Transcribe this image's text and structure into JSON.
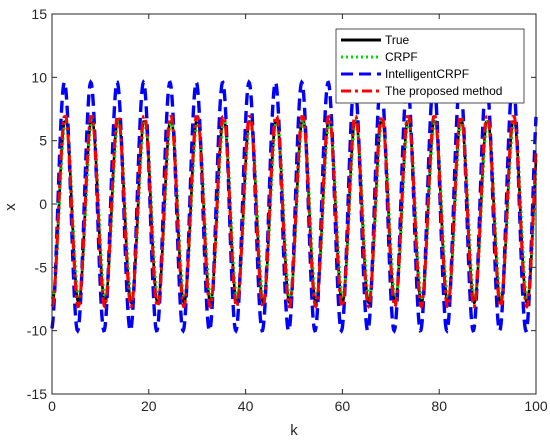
{
  "chart_data": {
    "type": "line",
    "title": "",
    "xlabel": "k",
    "ylabel": "x",
    "xlim": [
      0,
      100
    ],
    "ylim": [
      -15,
      15
    ],
    "xticks": [
      0,
      20,
      40,
      60,
      80,
      100
    ],
    "yticks": [
      -15,
      -10,
      -5,
      0,
      5,
      10,
      15
    ],
    "grid": false,
    "legend_position": "top-right",
    "series": [
      {
        "name": "True",
        "color": "#000000",
        "style": "solid",
        "model": {
          "offset": -0.5,
          "amplitude": 7.3,
          "period": 5.45,
          "phase_k": 1.4,
          "high_clip": 6.5
        }
      },
      {
        "name": "CRPF",
        "color": "#00dd00",
        "style": "dotted",
        "model": {
          "offset": -0.4,
          "amplitude": 7.0,
          "period": 5.45,
          "phase_k": 1.5,
          "high_clip": 6.6
        }
      },
      {
        "name": "IntelligentCRPF",
        "color": "#0000ff",
        "style": "dashed",
        "model": {
          "offset": -0.2,
          "amplitude": 9.8,
          "period": 5.45,
          "phase_k": 1.2,
          "high_clip": 10.0
        }
      },
      {
        "name": "The proposed method",
        "color": "#ff0000",
        "style": "dashdot",
        "model": {
          "offset": -0.5,
          "amplitude": 7.6,
          "period": 5.45,
          "phase_k": 1.35,
          "high_clip": 6.9
        }
      }
    ]
  }
}
